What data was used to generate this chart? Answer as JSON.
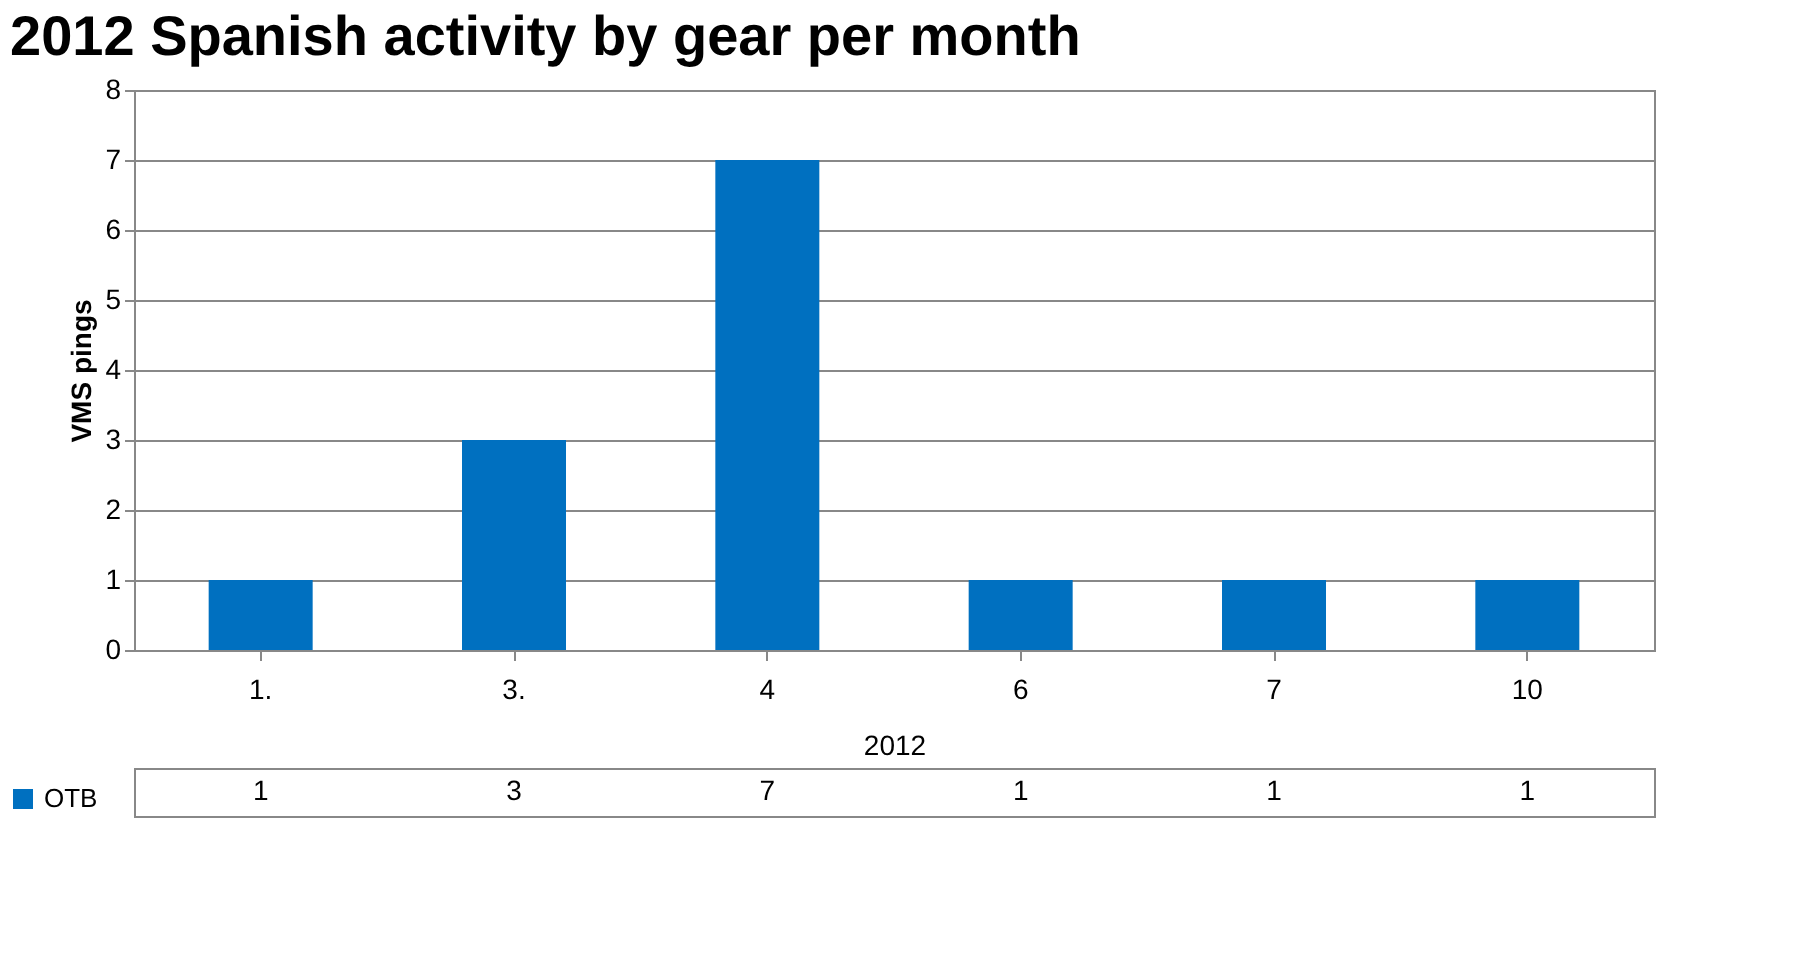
{
  "chart_data": {
    "type": "bar",
    "title": "2012 Spanish activity by gear per month",
    "ylabel": "VMS pings",
    "xlabel": "2012",
    "categories": [
      "1.",
      "3.",
      "4",
      "6",
      "7",
      "10"
    ],
    "series": [
      {
        "name": "OTB",
        "color": "#0070c0",
        "values": [
          1,
          3,
          7,
          1,
          1,
          1
        ]
      }
    ],
    "ylim": [
      0,
      8
    ],
    "yticks": [
      0,
      1,
      2,
      3,
      4,
      5,
      6,
      7,
      8
    ],
    "grid": "y",
    "legend": "bottom left",
    "data_labels": true
  }
}
